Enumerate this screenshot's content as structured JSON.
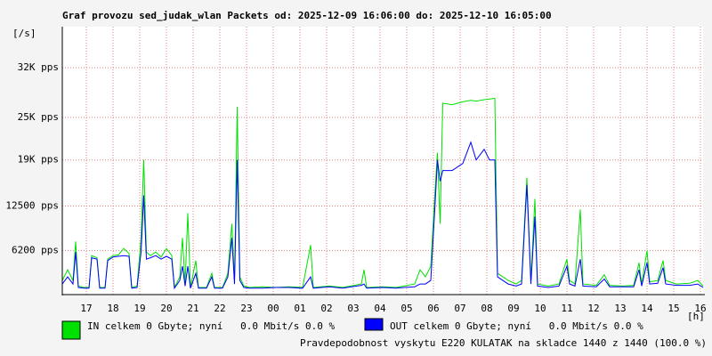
{
  "chart_data": {
    "type": "line",
    "title": "Graf provozu sed_judak_wlan Packets od: 2025-12-09 16:06:00 do: 2025-12-10 16:05:00",
    "y_label": "[/s]",
    "x_label": "[h]",
    "x": [
      0,
      0.2,
      0.4,
      0.5,
      0.6,
      0.8,
      1.0,
      1.1,
      1.3,
      1.4,
      1.6,
      1.7,
      1.9,
      2.1,
      2.3,
      2.5,
      2.6,
      2.8,
      2.95,
      3.05,
      3.15,
      3.3,
      3.5,
      3.7,
      3.9,
      4.1,
      4.2,
      4.4,
      4.5,
      4.6,
      4.7,
      4.8,
      5.0,
      5.1,
      5.4,
      5.6,
      5.7,
      6.0,
      6.2,
      6.35,
      6.45,
      6.55,
      6.65,
      6.8,
      7.0,
      7.5,
      8.0,
      8.5,
      9.0,
      9.3,
      9.4,
      10.0,
      10.5,
      11.2,
      11.3,
      11.4,
      12.0,
      12.5,
      12.8,
      13.2,
      13.4,
      13.6,
      13.8,
      13.95,
      14.05,
      14.15,
      14.25,
      14.6,
      15.0,
      15.3,
      15.5,
      15.8,
      16.0,
      16.2,
      16.3,
      16.5,
      16.7,
      17.0,
      17.2,
      17.4,
      17.55,
      17.7,
      17.8,
      18.2,
      18.6,
      18.9,
      19.0,
      19.2,
      19.4,
      19.5,
      20.0,
      20.3,
      20.5,
      21.0,
      21.4,
      21.6,
      21.7,
      21.9,
      22.0,
      22.3,
      22.5,
      22.6,
      23.0,
      23.5,
      23.8,
      24.0
    ],
    "series": [
      {
        "name": "IN celkem 0 Gbyte; nyní   0.0 Mbit/s 0.0 %",
        "color": "#00e000",
        "values": [
          2000,
          3500,
          2000,
          7500,
          1200,
          1000,
          1000,
          5500,
          5200,
          1000,
          1000,
          5000,
          5500,
          5600,
          6500,
          5800,
          1000,
          1200,
          8000,
          19000,
          6000,
          5500,
          6000,
          5300,
          6500,
          5500,
          1000,
          2500,
          8000,
          1500,
          11500,
          1000,
          4800,
          1000,
          1000,
          3000,
          1000,
          1000,
          3000,
          10000,
          2000,
          26500,
          2500,
          1200,
          1000,
          1100,
          1000,
          1100,
          1000,
          7000,
          1000,
          1200,
          1000,
          1500,
          3500,
          1000,
          1100,
          1000,
          1200,
          1500,
          3500,
          2500,
          4000,
          14000,
          20000,
          10000,
          27000,
          26800,
          27200,
          27400,
          27300,
          27500,
          27600,
          27700,
          3000,
          2500,
          2000,
          1500,
          2000,
          16500,
          2000,
          13500,
          1500,
          1200,
          1500,
          5000,
          2000,
          1500,
          12000,
          1500,
          1300,
          2800,
          1300,
          1200,
          1300,
          4500,
          1500,
          6200,
          1800,
          2000,
          4800,
          2000,
          1500,
          1600,
          2000,
          1200
        ]
      },
      {
        "name": "OUT celkem 0 Gbyte; nyní   0.0 Mbit/s 0.0 %",
        "color": "#0000ff",
        "values": [
          1500,
          2500,
          1500,
          6000,
          1000,
          900,
          900,
          5200,
          5000,
          900,
          900,
          4800,
          5300,
          5400,
          5500,
          5400,
          900,
          1000,
          6000,
          14000,
          5000,
          5200,
          5500,
          5000,
          5400,
          5000,
          900,
          2000,
          4000,
          1200,
          4000,
          900,
          3000,
          900,
          900,
          2500,
          900,
          900,
          2500,
          8000,
          1500,
          19000,
          2000,
          1000,
          900,
          900,
          1000,
          1000,
          900,
          2500,
          900,
          1100,
          900,
          1300,
          1500,
          900,
          1000,
          900,
          1000,
          1100,
          1500,
          1500,
          2000,
          12000,
          19000,
          16000,
          17500,
          17500,
          18500,
          21500,
          19000,
          20500,
          19000,
          19000,
          2500,
          2000,
          1500,
          1200,
          1500,
          15500,
          1500,
          11000,
          1200,
          1000,
          1200,
          4000,
          1500,
          1200,
          5000,
          1200,
          1100,
          2200,
          1100,
          1100,
          1100,
          3500,
          1200,
          4500,
          1500,
          1600,
          3800,
          1500,
          1300,
          1300,
          1500,
          1000
        ]
      }
    ],
    "xlim": [
      0,
      24
    ],
    "xticks": [
      {
        "value": 0.9,
        "label": "17"
      },
      {
        "value": 1.9,
        "label": "18"
      },
      {
        "value": 2.9,
        "label": "19"
      },
      {
        "value": 3.9,
        "label": "20"
      },
      {
        "value": 4.9,
        "label": "21"
      },
      {
        "value": 5.9,
        "label": "22"
      },
      {
        "value": 6.9,
        "label": "23"
      },
      {
        "value": 7.9,
        "label": "00"
      },
      {
        "value": 8.9,
        "label": "01"
      },
      {
        "value": 9.9,
        "label": "02"
      },
      {
        "value": 10.9,
        "label": "03"
      },
      {
        "value": 11.9,
        "label": "04"
      },
      {
        "value": 12.9,
        "label": "05"
      },
      {
        "value": 13.9,
        "label": "06"
      },
      {
        "value": 14.9,
        "label": "07"
      },
      {
        "value": 15.9,
        "label": "08"
      },
      {
        "value": 16.9,
        "label": "09"
      },
      {
        "value": 17.9,
        "label": "10"
      },
      {
        "value": 18.9,
        "label": "11"
      },
      {
        "value": 19.9,
        "label": "12"
      },
      {
        "value": 20.9,
        "label": "13"
      },
      {
        "value": 21.9,
        "label": "14"
      },
      {
        "value": 22.9,
        "label": "15"
      },
      {
        "value": 23.9,
        "label": "16"
      }
    ],
    "ylim": [
      0,
      37800
    ],
    "yticks": [
      {
        "value": 6200,
        "label": "6200 pps"
      },
      {
        "value": 12500,
        "label": "12500 pps"
      },
      {
        "value": 19000,
        "label": "19K pps"
      },
      {
        "value": 25000,
        "label": "25K pps"
      },
      {
        "value": 32000,
        "label": "32K pps"
      }
    ],
    "grid": true,
    "note": "Pravdepodobnost vyskytu E220 KULATAK na skladce 1440 z 1440 (100.0 %)",
    "note_color": "#ff0000"
  }
}
